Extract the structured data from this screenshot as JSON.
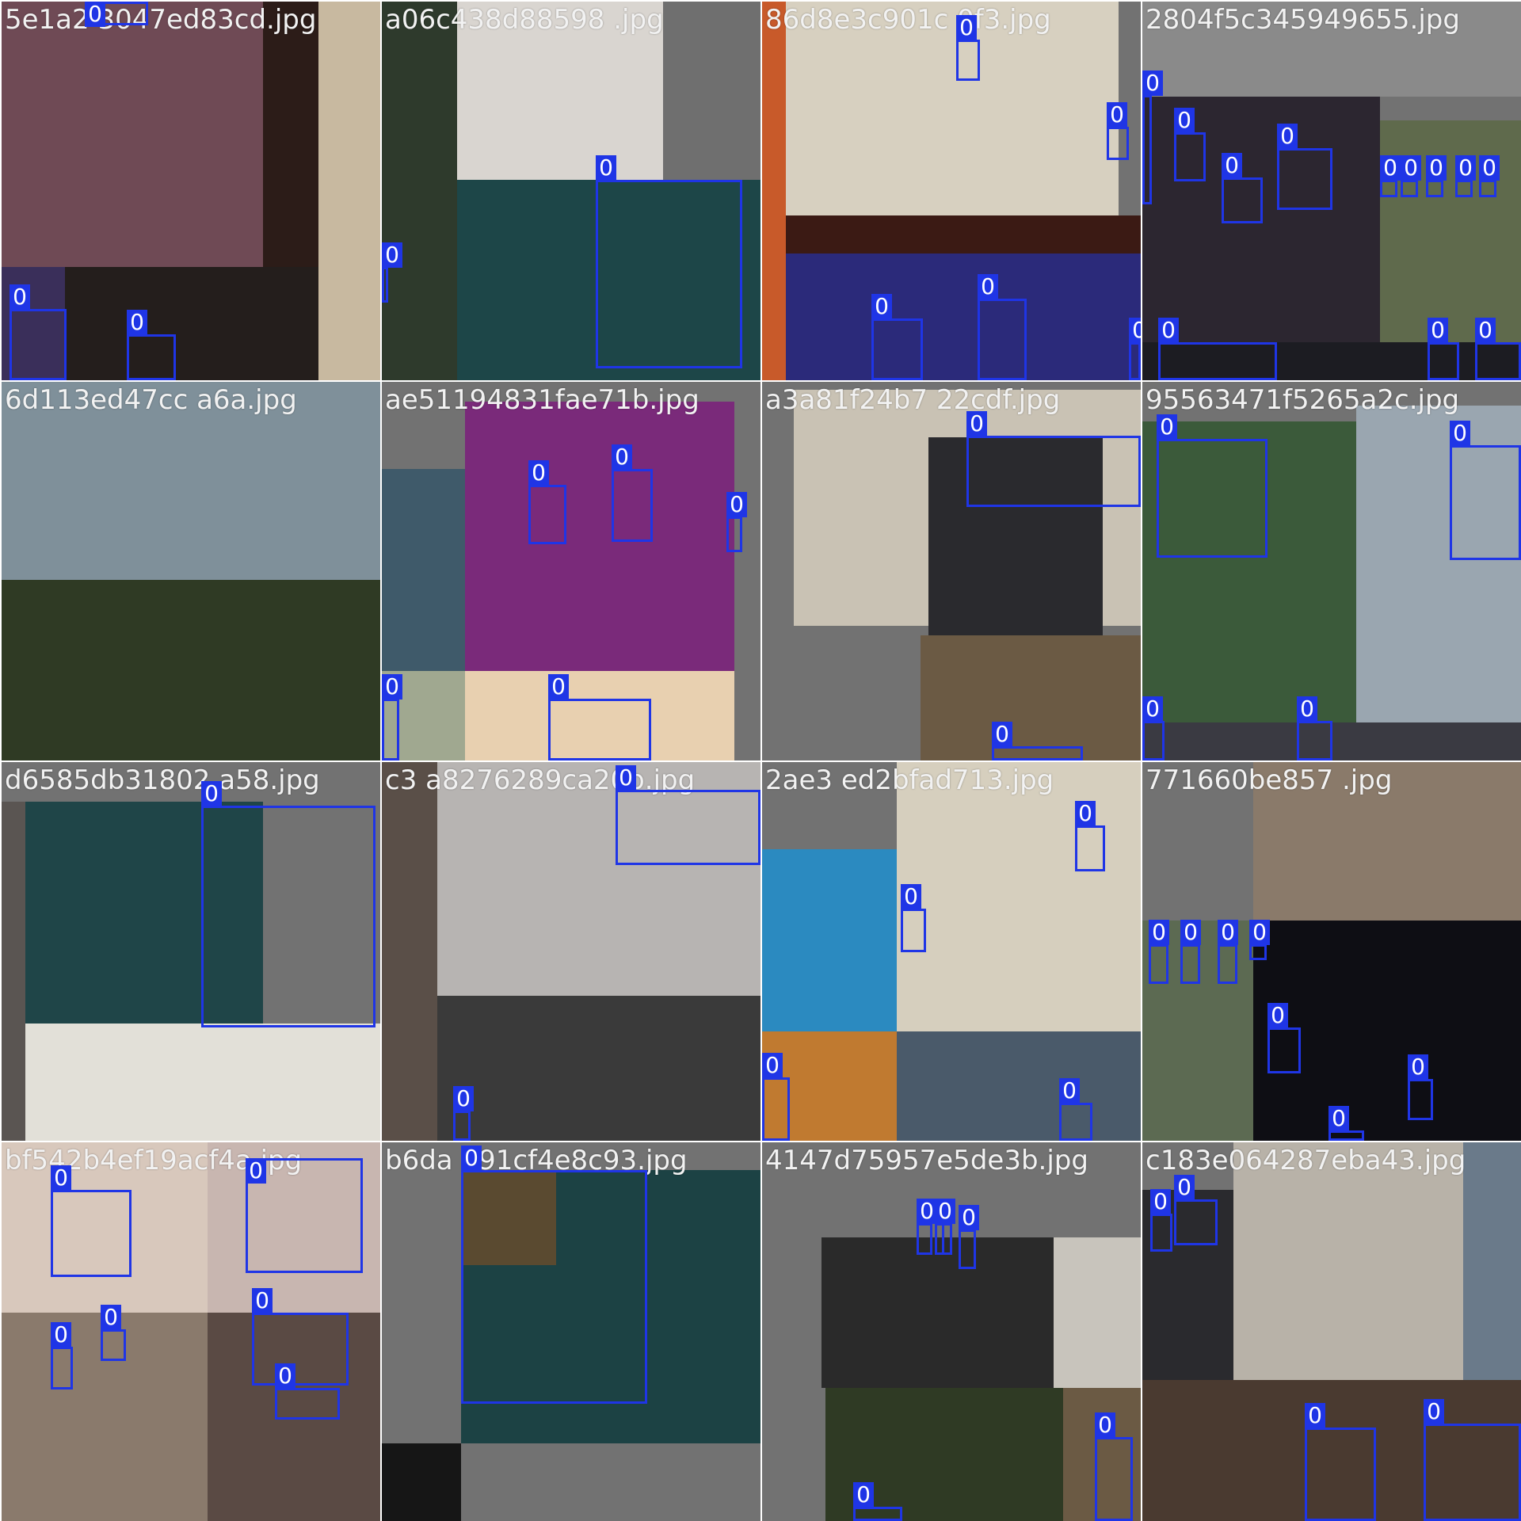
{
  "box_color": "#1f35e6",
  "label_text_color": "#ffffff",
  "filename_color": "#f2f2f2",
  "tiles": [
    {
      "filename": "5e1a2 3047ed83cd.jpg",
      "patches": [
        {
          "color": "#6f4a55"
        },
        {
          "color": "#3a2f5a"
        },
        {
          "color": "#2c1c18"
        },
        {
          "color": "#241e1c"
        },
        {
          "color": "#c8b9a0"
        }
      ],
      "boxes": [
        {
          "label": "0"
        },
        {
          "label": "0"
        },
        {
          "label": "0"
        }
      ]
    },
    {
      "filename": "a06c438d88598 .jpg",
      "patches": [
        {
          "color": "#d9d5d0"
        },
        {
          "color": "#1d4648"
        },
        {
          "color": "#2e3a2c"
        },
        {
          "color": "#6f6f6f"
        }
      ],
      "boxes": [
        {
          "label": "0"
        },
        {
          "label": "0"
        }
      ]
    },
    {
      "filename": "86d8e3c901c 0f3.jpg",
      "patches": [
        {
          "color": "#d7d0c0"
        },
        {
          "color": "#3b1a14"
        },
        {
          "color": "#2b2a7a"
        },
        {
          "color": "#c85a2a"
        }
      ],
      "boxes": [
        {
          "label": "0"
        },
        {
          "label": "0"
        },
        {
          "label": "0"
        },
        {
          "label": "0"
        },
        {
          "label": "0"
        }
      ]
    },
    {
      "filename": "2804f5c345949655.jpg",
      "patches": [
        {
          "color": "#2c2630"
        },
        {
          "color": "#5f6a4c"
        },
        {
          "color": "#1c1c22"
        },
        {
          "color": "#8a8a8a"
        }
      ],
      "boxes": [
        {
          "label": "0"
        },
        {
          "label": "0"
        },
        {
          "label": "0"
        },
        {
          "label": "0"
        },
        {
          "label": "0"
        },
        {
          "label": "0"
        },
        {
          "label": "0"
        },
        {
          "label": "0"
        },
        {
          "label": "0"
        },
        {
          "label": "0"
        },
        {
          "label": "0"
        },
        {
          "label": "0"
        }
      ]
    },
    {
      "filename": "6d113ed47cc a6a.jpg",
      "patches": [
        {
          "color": "#7f909a"
        },
        {
          "color": "#2f3a24"
        }
      ],
      "boxes": []
    },
    {
      "filename": "ae51194831fae71b.jpg",
      "patches": [
        {
          "color": "#7a2a7a"
        },
        {
          "color": "#3f5a6a"
        },
        {
          "color": "#a0a890"
        },
        {
          "color": "#e8d0b0"
        }
      ],
      "boxes": [
        {
          "label": "0"
        },
        {
          "label": "0"
        },
        {
          "label": "0"
        },
        {
          "label": "0"
        },
        {
          "label": "0"
        }
      ]
    },
    {
      "filename": "a3a81f24b7 22cdf.jpg",
      "patches": [
        {
          "color": "#c9c2b4"
        },
        {
          "color": "#2a2a2e"
        },
        {
          "color": "#6b5a44"
        }
      ],
      "boxes": [
        {
          "label": "0"
        },
        {
          "label": "0"
        }
      ]
    },
    {
      "filename": "95563471f5265a2c.jpg",
      "patches": [
        {
          "color": "#3b5a3a"
        },
        {
          "color": "#9aa6b0"
        },
        {
          "color": "#3a3a42"
        }
      ],
      "boxes": [
        {
          "label": "0"
        },
        {
          "label": "0"
        },
        {
          "label": "0"
        },
        {
          "label": "0"
        }
      ]
    },
    {
      "filename": "d6585db31802 a58.jpg",
      "patches": [
        {
          "color": "#1f4548"
        },
        {
          "color": "#e2e0d8"
        },
        {
          "color": "#5a5552"
        }
      ],
      "boxes": [
        {
          "label": "0"
        }
      ]
    },
    {
      "filename": "c3 a8276289ca20b.jpg",
      "patches": [
        {
          "color": "#b7b4b2"
        },
        {
          "color": "#3a3a3a"
        },
        {
          "color": "#5a4f48"
        }
      ],
      "boxes": [
        {
          "label": "0"
        },
        {
          "label": "0"
        }
      ]
    },
    {
      "filename": "2ae3 ed2bfad713.jpg",
      "patches": [
        {
          "color": "#d6cfbe"
        },
        {
          "color": "#2b8ac0"
        },
        {
          "color": "#c07a30"
        },
        {
          "color": "#4a5a6a"
        }
      ],
      "boxes": [
        {
          "label": "0"
        },
        {
          "label": "0"
        },
        {
          "label": "0"
        },
        {
          "label": "0"
        }
      ]
    },
    {
      "filename": "771660be857 .jpg",
      "patches": [
        {
          "color": "#8a7a6a"
        },
        {
          "color": "#5c6a52"
        },
        {
          "color": "#0e0e14"
        }
      ],
      "boxes": [
        {
          "label": "0"
        },
        {
          "label": "0"
        },
        {
          "label": "0"
        },
        {
          "label": "0"
        },
        {
          "label": "0"
        },
        {
          "label": "0"
        },
        {
          "label": "0"
        }
      ]
    },
    {
      "filename": "bf542b4ef19acf4a.jpg",
      "patches": [
        {
          "color": "#d8c8bc"
        },
        {
          "color": "#c8b6b0"
        },
        {
          "color": "#8a7a6c"
        },
        {
          "color": "#5a4a44"
        }
      ],
      "boxes": [
        {
          "label": "0"
        },
        {
          "label": "0"
        },
        {
          "label": "0"
        },
        {
          "label": "0"
        },
        {
          "label": "0"
        },
        {
          "label": "0"
        }
      ]
    },
    {
      "filename": "b6da 991cf4e8c93.jpg",
      "patches": [
        {
          "color": "#1c4244"
        },
        {
          "color": "#5a4a30"
        },
        {
          "color": "#161616"
        }
      ],
      "boxes": [
        {
          "label": "0"
        }
      ]
    },
    {
      "filename": "4147d75957e5de3b.jpg",
      "patches": [
        {
          "color": "#2a2a2a"
        },
        {
          "color": "#c8c4bc"
        },
        {
          "color": "#2f3a24"
        },
        {
          "color": "#6b5a44"
        }
      ],
      "boxes": [
        {
          "label": "0"
        },
        {
          "label": "0"
        },
        {
          "label": "0"
        },
        {
          "label": "0"
        },
        {
          "label": "0"
        },
        {
          "label": "0"
        },
        {
          "label": "0"
        }
      ]
    },
    {
      "filename": "c183e064287eba43.jpg",
      "patches": [
        {
          "color": "#2a2a2e"
        },
        {
          "color": "#b8b2a8"
        },
        {
          "color": "#6a7a8a"
        },
        {
          "color": "#4a3a30"
        }
      ],
      "boxes": [
        {
          "label": "0"
        },
        {
          "label": "0"
        },
        {
          "label": "0"
        },
        {
          "label": "0"
        }
      ]
    }
  ]
}
